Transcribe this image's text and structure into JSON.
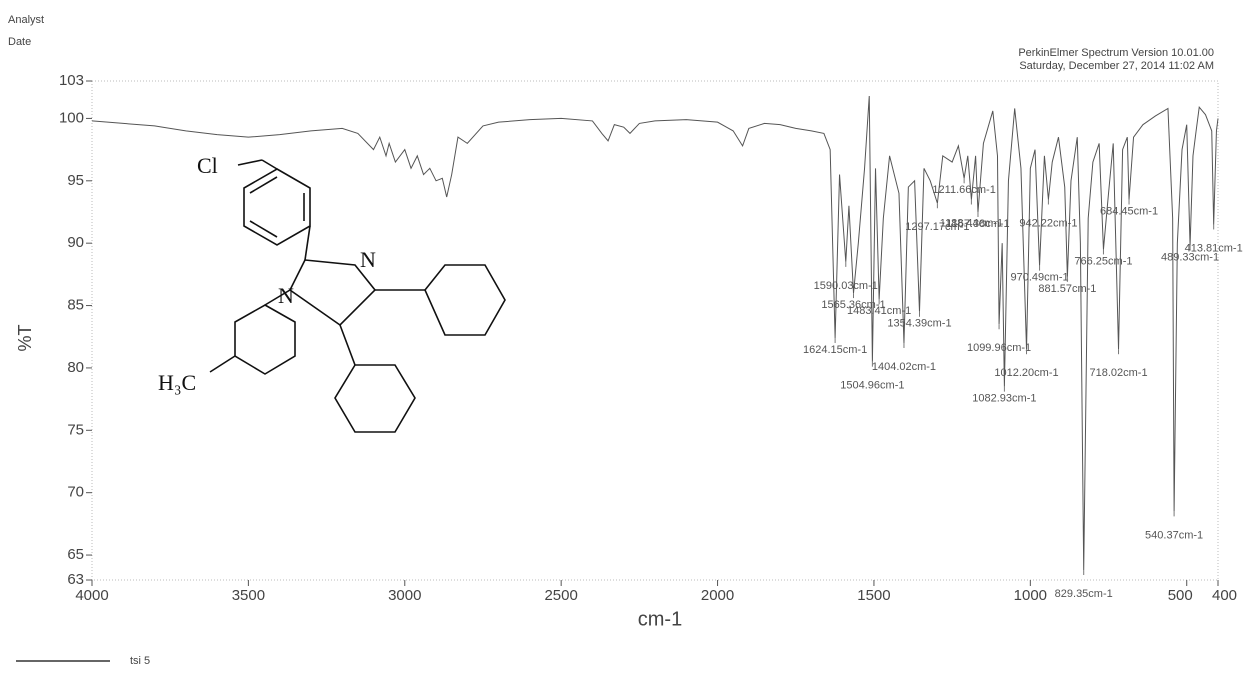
{
  "header": {
    "analyst": "Analyst",
    "date": "Date",
    "software": "PerkinElmer Spectrum Version 10.01.00",
    "timestamp": "Saturday, December 27, 2014 11:02 AM"
  },
  "structure": {
    "labels": [
      "Cl",
      "N",
      "N",
      "H₃C"
    ]
  },
  "chart_data": {
    "type": "line",
    "xlabel": "cm-1",
    "ylabel": "%T",
    "xlim": [
      4000,
      400
    ],
    "ylim": [
      63,
      103
    ],
    "xticks": [
      4000,
      3500,
      3000,
      2500,
      2000,
      1500,
      1000,
      500,
      400
    ],
    "yticks": [
      63,
      65,
      70,
      75,
      80,
      85,
      90,
      95,
      100,
      103
    ],
    "series": [
      {
        "name": "tsi 5",
        "color": "#555555",
        "x": [
          4000,
          3900,
          3800,
          3700,
          3600,
          3500,
          3400,
          3300,
          3200,
          3150,
          3100,
          3080,
          3060,
          3050,
          3030,
          3000,
          2980,
          2960,
          2940,
          2920,
          2900,
          2880,
          2866,
          2850,
          2830,
          2800,
          2750,
          2700,
          2600,
          2500,
          2400,
          2370,
          2350,
          2330,
          2300,
          2280,
          2250,
          2200,
          2100,
          2000,
          1950,
          1920,
          1900,
          1850,
          1800,
          1750,
          1700,
          1660,
          1640,
          1624.15,
          1610,
          1590.03,
          1580,
          1565.36,
          1550,
          1530,
          1515,
          1504.96,
          1495,
          1483.41,
          1470,
          1450,
          1420,
          1404.02,
          1390,
          1370,
          1354.39,
          1340,
          1320,
          1297.17,
          1280,
          1250,
          1230,
          1211.66,
          1200,
          1188.44,
          1175,
          1167.38,
          1150,
          1120,
          1105,
          1099.96,
          1090,
          1082.93,
          1070,
          1050,
          1030,
          1012.2,
          1000,
          985,
          970.49,
          955,
          942.22,
          930,
          910,
          890,
          881.57,
          870,
          850,
          840,
          829.35,
          815,
          800,
          780,
          766.25,
          750,
          735,
          718.02,
          705,
          690,
          684.45,
          670,
          640,
          600,
          560,
          545,
          540.37,
          530,
          515,
          500,
          489.33,
          480,
          470,
          460,
          440,
          420,
          413.81,
          405,
          400
        ],
        "values": [
          99.8,
          99.6,
          99.4,
          99.0,
          98.7,
          98.5,
          98.7,
          99.0,
          99.2,
          98.8,
          97.5,
          98.5,
          97.0,
          98.0,
          96.5,
          97.5,
          96.0,
          97.0,
          95.5,
          96.0,
          95.0,
          95.2,
          93.7,
          95.5,
          98.5,
          98.0,
          99.4,
          99.7,
          99.9,
          100.0,
          99.8,
          98.8,
          98.2,
          99.5,
          99.3,
          98.8,
          99.6,
          99.8,
          99.9,
          99.7,
          99.0,
          97.8,
          99.2,
          99.6,
          99.5,
          99.2,
          99.0,
          98.8,
          97.5,
          82.4,
          95.5,
          88.5,
          93.0,
          86.0,
          90.0,
          96.0,
          101.8,
          80.5,
          96.0,
          85.5,
          92.0,
          97.0,
          94.0,
          82.0,
          94.5,
          95.0,
          84.5,
          96.0,
          95.0,
          93.2,
          97.0,
          96.5,
          97.8,
          95.2,
          97.0,
          93.5,
          97.0,
          92.5,
          98.0,
          100.6,
          97.0,
          83.5,
          90.0,
          78.5,
          95.0,
          100.8,
          96.0,
          81.5,
          96.0,
          97.5,
          88.2,
          97.0,
          93.5,
          96.5,
          98.5,
          94.5,
          87.3,
          95.0,
          98.5,
          90.0,
          63.8,
          92.0,
          96.5,
          98.0,
          89.5,
          94.0,
          98.0,
          81.5,
          97.5,
          98.5,
          93.5,
          98.5,
          99.5,
          100.2,
          100.8,
          92.0,
          68.5,
          90.0,
          97.5,
          99.5,
          89.8,
          97.0,
          99.0,
          100.9,
          100.3,
          99.0,
          91.5,
          99.0,
          100.0
        ]
      }
    ],
    "peaks": [
      {
        "x": 1624.15,
        "y": 82.4,
        "label": "1624.15cm-1"
      },
      {
        "x": 1590.03,
        "y": 88.5,
        "label": "1590.03cm-1"
      },
      {
        "x": 1565.36,
        "y": 86.0,
        "label": "1565.36cm-1"
      },
      {
        "x": 1504.96,
        "y": 80.5,
        "label": "1504.96cm-1"
      },
      {
        "x": 1483.41,
        "y": 85.5,
        "label": "1483.41cm-1"
      },
      {
        "x": 1404.02,
        "y": 82.0,
        "label": "1404.02cm-1"
      },
      {
        "x": 1354.39,
        "y": 84.5,
        "label": "1354.39cm-1"
      },
      {
        "x": 1297.17,
        "y": 93.2,
        "label": "1297.17cm-1"
      },
      {
        "x": 1211.66,
        "y": 95.2,
        "label": "1211.66cm-1"
      },
      {
        "x": 1188.44,
        "y": 93.5,
        "label": "1188.44cm-1"
      },
      {
        "x": 1167.38,
        "y": 92.5,
        "label": "1167.38cm-1"
      },
      {
        "x": 1099.96,
        "y": 83.5,
        "label": "1099.96cm-1"
      },
      {
        "x": 1082.93,
        "y": 78.5,
        "label": "1082.93cm-1"
      },
      {
        "x": 1012.2,
        "y": 81.5,
        "label": "1012.20cm-1"
      },
      {
        "x": 970.49,
        "y": 88.2,
        "label": "970.49cm-1"
      },
      {
        "x": 942.22,
        "y": 93.5,
        "label": "942.22cm-1"
      },
      {
        "x": 881.57,
        "y": 87.3,
        "label": "881.57cm-1"
      },
      {
        "x": 829.35,
        "y": 63.8,
        "label": "829.35cm-1"
      },
      {
        "x": 766.25,
        "y": 89.5,
        "label": "766.25cm-1"
      },
      {
        "x": 718.02,
        "y": 81.5,
        "label": "718.02cm-1"
      },
      {
        "x": 684.45,
        "y": 93.5,
        "label": "684.45cm-1"
      },
      {
        "x": 540.37,
        "y": 68.5,
        "label": "540.37cm-1"
      },
      {
        "x": 489.33,
        "y": 89.8,
        "label": "489.33cm-1"
      },
      {
        "x": 413.81,
        "y": 91.5,
        "label": "413.81cm-1"
      }
    ]
  }
}
